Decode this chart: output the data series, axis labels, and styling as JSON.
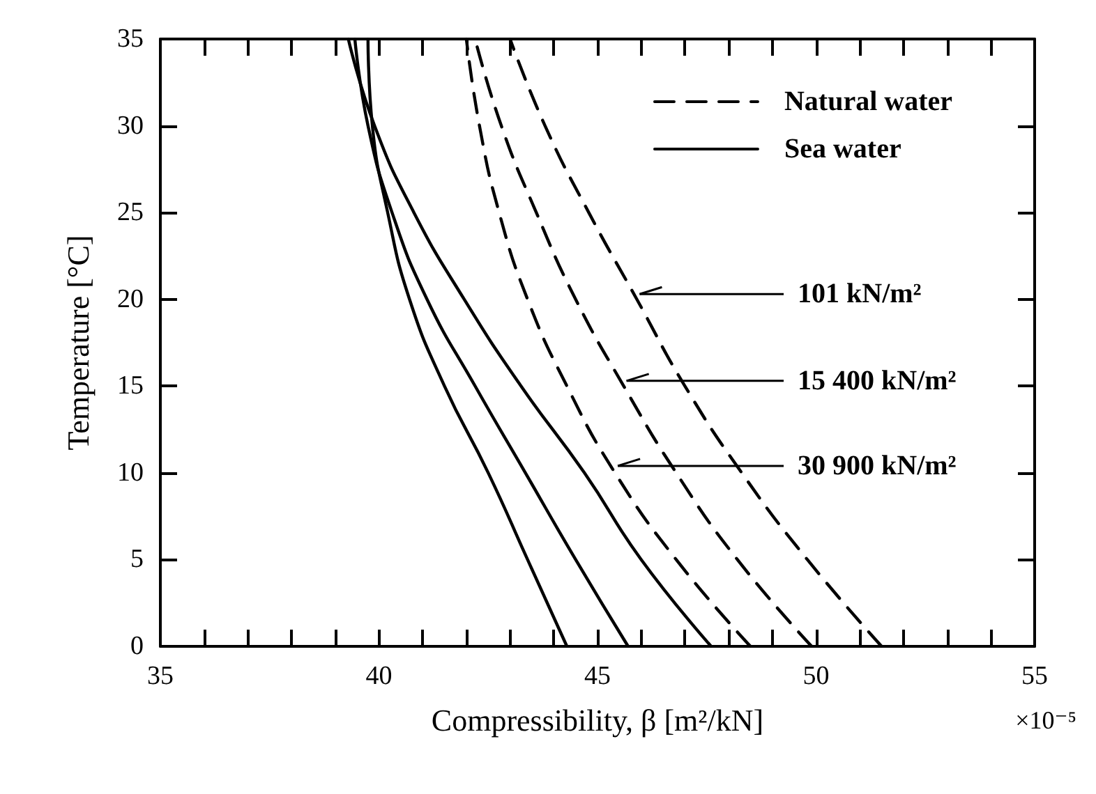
{
  "chart_data": {
    "type": "line",
    "xlabel": "Compressibility, β [m²/kN]",
    "ylabel": "Temperature [°C]",
    "xlim": [
      35,
      55
    ],
    "ylim": [
      0,
      35
    ],
    "xticks": [
      35,
      {
        "value": 36,
        "label": null
      },
      {
        "value": 37,
        "label": null
      },
      {
        "value": 38,
        "label": null
      },
      {
        "value": 39,
        "label": null
      },
      40,
      {
        "value": 41,
        "label": null
      },
      {
        "value": 42,
        "label": null
      },
      {
        "value": 43,
        "label": null
      },
      {
        "value": 44,
        "label": null
      },
      45,
      {
        "value": 46,
        "label": null
      },
      {
        "value": 47,
        "label": null
      },
      {
        "value": 48,
        "label": null
      },
      {
        "value": 49,
        "label": null
      },
      50,
      {
        "value": 51,
        "label": null
      },
      {
        "value": 52,
        "label": null
      },
      {
        "value": 53,
        "label": null
      },
      {
        "value": 54,
        "label": null
      },
      55
    ],
    "yticks": [
      0,
      5,
      10,
      15,
      20,
      25,
      30,
      35
    ],
    "grid": false,
    "legend": "top right",
    "marker": "none",
    "series": [
      {
        "name": "Natural water",
        "color": "#000000",
        "line_style": "dashed",
        "x": [
          48.5,
          46.8,
          45.4,
          44.3,
          43.4,
          42.75,
          42.3,
          42.0
        ],
        "values": [
          0,
          5,
          10,
          15,
          20,
          25,
          30,
          35
        ]
      },
      {
        "color": "#000000",
        "line_style": "dashed",
        "x": [
          49.9,
          48.2,
          46.8,
          45.6,
          44.5,
          43.6,
          42.8,
          42.2
        ],
        "values": [
          0,
          5,
          10,
          15,
          20,
          25,
          30,
          35
        ]
      },
      {
        "color": "#000000",
        "line_style": "dashed",
        "x": [
          51.5,
          49.8,
          48.3,
          47.0,
          45.9,
          44.8,
          43.8,
          43.0
        ],
        "values": [
          0,
          5,
          10,
          15,
          20,
          25,
          30,
          35
        ]
      },
      {
        "name": "Sea water",
        "color": "#000000",
        "line_style": "solid",
        "x": [
          44.3,
          43.4,
          42.5,
          41.5,
          40.7,
          40.2,
          39.85,
          39.75
        ],
        "values": [
          0,
          5,
          10,
          15,
          20,
          25,
          30,
          35
        ]
      },
      {
        "color": "#000000",
        "line_style": "solid",
        "x": [
          45.7,
          44.5,
          43.35,
          42.2,
          41.1,
          40.3,
          39.75,
          39.45
        ],
        "values": [
          0,
          5,
          10,
          15,
          20,
          25,
          30,
          35
        ]
      },
      {
        "color": "#000000",
        "line_style": "solid",
        "x": [
          47.6,
          46.0,
          44.7,
          43.25,
          41.95,
          40.8,
          39.9,
          39.3
        ],
        "values": [
          0,
          5,
          10,
          15,
          20,
          25,
          30,
          35
        ]
      }
    ],
    "annotations": [
      {
        "text": "101 kN/m²",
        "x": 45.9,
        "y": 20.3
      },
      {
        "text": "15 400 kN/m²",
        "x": 45.6,
        "y": 15.3
      },
      {
        "text": "30 900 kN/m²",
        "x": 45.4,
        "y": 10.4
      },
      "×10⁻⁵"
    ]
  }
}
